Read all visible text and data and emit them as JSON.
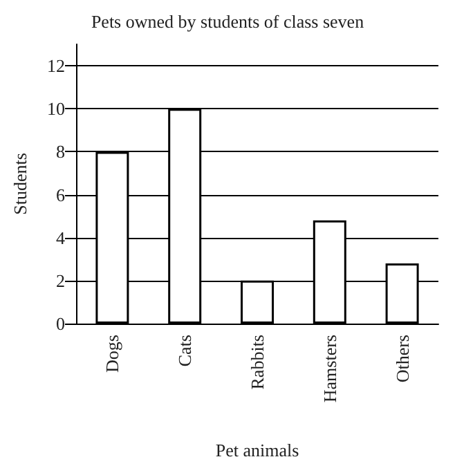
{
  "chart_data": {
    "type": "bar",
    "title": "Pets owned by students of class seven",
    "xlabel": "Pet animals",
    "ylabel": "Students",
    "categories": [
      "Dogs",
      "Cats",
      "Rabbits",
      "Hamsters",
      "Others"
    ],
    "values": [
      8,
      10,
      2,
      4.8,
      2.8
    ],
    "color": "#ffffff",
    "ylim": [
      0,
      13
    ],
    "yticks": [
      0,
      2,
      4,
      6,
      8,
      10,
      12
    ],
    "grid": "y"
  }
}
